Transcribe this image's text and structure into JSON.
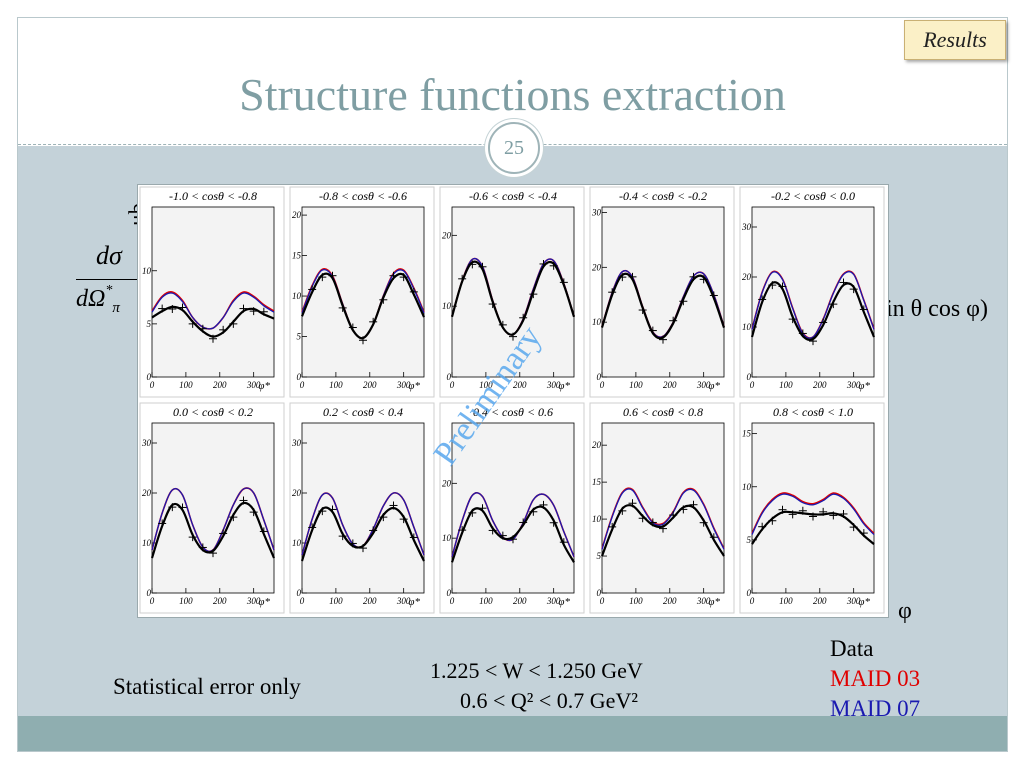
{
  "slide": {
    "title": "Structure functions extraction",
    "badge": "Results",
    "page_number": "25"
  },
  "formula": {
    "unit": "μb",
    "numerator": "dσ",
    "denominator": "dΩ",
    "denominator_sup": "*",
    "denominator_sub": "π",
    "fragment": "in θ cos φ)"
  },
  "labels": {
    "stat_note": "Statistical error only",
    "kin_w": "1.225 < W < 1.250 GeV",
    "kin_q2": "0.6 < Q² < 0.7 GeV²",
    "phi_axis": "φ",
    "watermark": "Preliminary"
  },
  "legend": [
    {
      "label": "Data",
      "color": "#000000"
    },
    {
      "label": "MAID 03",
      "color": "#e00000"
    },
    {
      "label": "MAID 07",
      "color": "#1a1ab0"
    }
  ],
  "chart_data": {
    "type": "line",
    "xlabel": "φ*",
    "x_ticks": [
      "0",
      "100",
      "200",
      "300"
    ],
    "xlim": [
      0,
      360
    ],
    "panels": [
      {
        "title": "-1.0 < cosθ < -0.8",
        "ylim": [
          0,
          16
        ],
        "y_ticks": [
          0,
          5,
          10
        ],
        "data_y": [
          5.6,
          6.2,
          6.6,
          6.3,
          5.2,
          4.3,
          3.8,
          4.2,
          5.2,
          6.2,
          6.4,
          5.9,
          5.5
        ],
        "maid03_y": [
          6.2,
          7.6,
          8.0,
          7.2,
          5.6,
          4.7,
          4.6,
          5.6,
          7.2,
          8.0,
          7.6,
          6.8,
          6.2
        ],
        "maid07_y": [
          6.1,
          7.5,
          7.9,
          7.1,
          5.6,
          4.7,
          4.6,
          5.6,
          7.1,
          7.9,
          7.5,
          6.7,
          6.1
        ]
      },
      {
        "title": "-0.8 < cosθ < -0.6",
        "ylim": [
          0,
          21
        ],
        "y_ticks": [
          0,
          5,
          10,
          15,
          20
        ],
        "data_y": [
          7.5,
          10.5,
          12.6,
          12.2,
          8.8,
          5.8,
          4.8,
          6.5,
          9.8,
          12.2,
          12.6,
          10.2,
          7.4
        ],
        "maid03_y": [
          8.0,
          11.3,
          13.3,
          12.5,
          9.0,
          5.8,
          4.8,
          6.5,
          10.0,
          12.8,
          13.2,
          11.0,
          8.0
        ],
        "maid07_y": [
          7.9,
          11.2,
          13.2,
          12.4,
          9.0,
          5.8,
          4.8,
          6.5,
          10.0,
          12.7,
          13.1,
          10.9,
          7.9
        ]
      },
      {
        "title": "-0.6 < cosθ < -0.4",
        "ylim": [
          0,
          24
        ],
        "y_ticks": [
          0,
          10,
          20
        ],
        "data_y": [
          8.5,
          13.5,
          16.2,
          15.2,
          10.6,
          7.0,
          6.0,
          8.0,
          12.0,
          15.6,
          16.0,
          13.0,
          8.5
        ],
        "maid03_y": [
          8.6,
          13.6,
          16.6,
          15.6,
          10.8,
          7.0,
          6.0,
          8.2,
          12.4,
          16.0,
          16.4,
          13.2,
          8.6
        ],
        "maid07_y": [
          8.6,
          13.6,
          16.6,
          15.6,
          10.8,
          7.0,
          6.0,
          8.2,
          12.4,
          16.0,
          16.4,
          13.2,
          8.6
        ]
      },
      {
        "title": "-0.4 < cosθ < -0.2",
        "ylim": [
          0,
          31
        ],
        "y_ticks": [
          0,
          10,
          20,
          30
        ],
        "data_y": [
          9.0,
          15.0,
          18.6,
          17.8,
          12.6,
          8.0,
          7.2,
          9.8,
          14.2,
          17.8,
          18.2,
          14.4,
          9.0
        ],
        "maid03_y": [
          9.2,
          15.4,
          19.2,
          18.2,
          12.8,
          8.2,
          7.4,
          10.0,
          14.6,
          18.4,
          18.8,
          15.0,
          9.2
        ],
        "maid07_y": [
          9.2,
          15.4,
          19.2,
          18.2,
          12.8,
          8.2,
          7.4,
          10.0,
          14.6,
          18.4,
          18.8,
          15.0,
          9.2
        ]
      },
      {
        "title": "-0.2 < cosθ < 0.0",
        "ylim": [
          0,
          34
        ],
        "y_ticks": [
          0,
          10,
          20,
          30
        ],
        "data_y": [
          8.0,
          15.0,
          18.8,
          17.6,
          12.0,
          8.2,
          7.6,
          10.4,
          15.0,
          18.4,
          18.0,
          13.0,
          8.0
        ],
        "maid03_y": [
          9.6,
          17.0,
          21.0,
          19.6,
          13.8,
          8.8,
          8.0,
          11.6,
          16.8,
          20.6,
          20.6,
          15.4,
          9.6
        ],
        "maid07_y": [
          9.5,
          16.9,
          20.9,
          19.5,
          13.7,
          8.7,
          8.0,
          11.5,
          16.7,
          20.5,
          20.5,
          15.3,
          9.5
        ]
      },
      {
        "title": "0.0 < cosθ < 0.2",
        "ylim": [
          0,
          34
        ],
        "y_ticks": [
          0,
          10,
          20,
          30
        ],
        "data_y": [
          7.0,
          13.4,
          17.6,
          16.6,
          11.6,
          8.6,
          8.4,
          11.4,
          15.6,
          18.0,
          16.6,
          11.8,
          7.0
        ],
        "maid03_y": [
          8.6,
          16.0,
          20.6,
          19.6,
          13.6,
          9.2,
          8.6,
          12.6,
          17.6,
          20.8,
          20.0,
          14.6,
          8.6
        ],
        "maid07_y": [
          8.6,
          16.0,
          20.6,
          19.6,
          13.6,
          9.2,
          8.6,
          12.6,
          17.6,
          20.8,
          20.0,
          14.6,
          8.6
        ]
      },
      {
        "title": "0.2 < cosθ < 0.4",
        "ylim": [
          0,
          34
        ],
        "y_ticks": [
          0,
          10,
          20,
          30
        ],
        "data_y": [
          6.4,
          12.6,
          16.8,
          16.2,
          11.8,
          9.4,
          9.4,
          12.0,
          15.6,
          17.0,
          15.2,
          10.6,
          6.4
        ],
        "maid03_y": [
          7.6,
          14.8,
          19.6,
          19.0,
          13.6,
          9.8,
          9.4,
          12.8,
          17.4,
          20.0,
          18.6,
          13.2,
          7.6
        ],
        "maid07_y": [
          7.6,
          14.8,
          19.6,
          19.0,
          13.6,
          9.8,
          9.4,
          12.8,
          17.4,
          20.0,
          18.6,
          13.2,
          7.6
        ]
      },
      {
        "title": "0.4 < cosθ < 0.6",
        "ylim": [
          0,
          31
        ],
        "y_ticks": [
          0,
          10,
          20
        ],
        "data_y": [
          5.6,
          11.0,
          15.0,
          15.0,
          11.8,
          10.0,
          10.2,
          12.4,
          15.2,
          15.6,
          13.2,
          8.8,
          5.6
        ],
        "maid03_y": [
          6.6,
          13.2,
          17.8,
          17.6,
          13.2,
          10.2,
          9.8,
          12.8,
          17.0,
          18.0,
          16.0,
          11.2,
          6.6
        ],
        "maid07_y": [
          6.6,
          13.2,
          17.8,
          17.6,
          13.2,
          10.2,
          9.8,
          12.8,
          17.0,
          18.0,
          16.0,
          11.2,
          6.6
        ]
      },
      {
        "title": "0.6 < cosθ < 0.8",
        "ylim": [
          0,
          23
        ],
        "y_ticks": [
          0,
          5,
          10,
          15,
          20
        ],
        "data_y": [
          5.0,
          8.6,
          11.4,
          11.8,
          10.4,
          9.2,
          9.0,
          10.2,
          11.6,
          11.6,
          9.8,
          7.2,
          5.0
        ],
        "maid03_y": [
          6.0,
          10.4,
          13.6,
          14.0,
          11.6,
          9.6,
          9.4,
          11.0,
          13.6,
          14.0,
          12.0,
          8.8,
          6.0
        ],
        "maid07_y": [
          5.9,
          10.3,
          13.5,
          13.9,
          11.5,
          9.5,
          9.3,
          10.9,
          13.5,
          13.9,
          11.9,
          8.7,
          5.9
        ]
      },
      {
        "title": "0.8 < cosθ < 1.0",
        "ylim": [
          0,
          16
        ],
        "y_ticks": [
          0,
          5,
          10,
          15
        ],
        "data_y": [
          4.6,
          6.0,
          7.0,
          7.6,
          7.6,
          7.5,
          7.4,
          7.4,
          7.5,
          7.2,
          6.4,
          5.4,
          4.6
        ],
        "maid03_y": [
          5.6,
          7.6,
          8.8,
          9.4,
          9.2,
          8.6,
          8.4,
          8.8,
          9.4,
          9.0,
          8.0,
          6.6,
          5.6
        ],
        "maid07_y": [
          5.5,
          7.5,
          8.7,
          9.3,
          9.1,
          8.5,
          8.3,
          8.7,
          9.3,
          8.9,
          7.9,
          6.5,
          5.5
        ]
      }
    ]
  }
}
